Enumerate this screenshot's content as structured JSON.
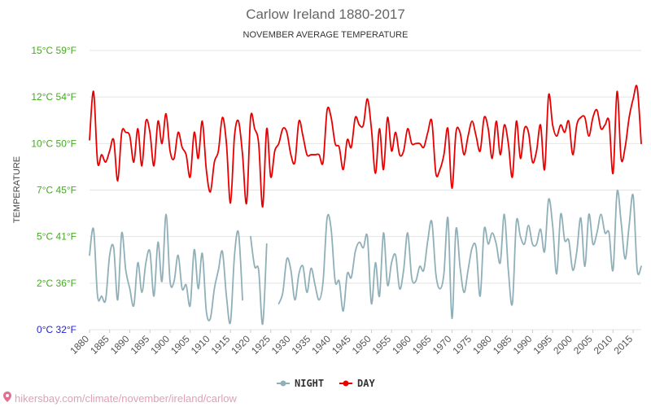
{
  "chart_data": {
    "type": "line",
    "title": "Carlow Ireland 1880-2017",
    "subtitle": "NOVEMBER AVERAGE TEMPERATURE",
    "ylabel": "TEMPERATURE",
    "ylim": [
      0,
      15
    ],
    "xlim": [
      1880,
      2017
    ],
    "yticks": [
      {
        "value": 0,
        "label": "0°C 32°F",
        "color": "#2222cc"
      },
      {
        "value": 2.5,
        "label": "2°C 36°F",
        "color": "#44aa22"
      },
      {
        "value": 5,
        "label": "5°C 41°F",
        "color": "#44aa22"
      },
      {
        "value": 7.5,
        "label": "7°C 45°F",
        "color": "#44aa22"
      },
      {
        "value": 10,
        "label": "10°C 50°F",
        "color": "#44aa22"
      },
      {
        "value": 12.5,
        "label": "12°C 54°F",
        "color": "#44aa22"
      },
      {
        "value": 15,
        "label": "15°C 59°F",
        "color": "#44aa22"
      }
    ],
    "xticks": [
      1880,
      1885,
      1890,
      1895,
      1900,
      1905,
      1910,
      1915,
      1920,
      1925,
      1930,
      1935,
      1940,
      1945,
      1950,
      1955,
      1960,
      1965,
      1970,
      1975,
      1980,
      1985,
      1990,
      1995,
      2000,
      2005,
      2010,
      2015
    ],
    "grid": true,
    "legend": "bottom-center",
    "series": [
      {
        "name": "NIGHT",
        "color": "#8fb0b8",
        "values": [
          [
            1880,
            4.0
          ],
          [
            1881,
            5.4
          ],
          [
            1882,
            1.8
          ],
          [
            1883,
            1.8
          ],
          [
            1884,
            1.6
          ],
          [
            1885,
            4.0
          ],
          [
            1886,
            4.4
          ],
          [
            1887,
            1.6
          ],
          [
            1888,
            5.2
          ],
          [
            1889,
            3.2
          ],
          [
            1890,
            2.2
          ],
          [
            1891,
            1.3
          ],
          [
            1892,
            3.6
          ],
          [
            1893,
            2.0
          ],
          [
            1894,
            3.6
          ],
          [
            1895,
            4.2
          ],
          [
            1896,
            1.8
          ],
          [
            1897,
            4.7
          ],
          [
            1898,
            2.6
          ],
          [
            1899,
            6.2
          ],
          [
            1900,
            2.6
          ],
          [
            1901,
            2.6
          ],
          [
            1902,
            4.0
          ],
          [
            1903,
            2.2
          ],
          [
            1904,
            2.4
          ],
          [
            1905,
            1.3
          ],
          [
            1906,
            4.3
          ],
          [
            1907,
            2.2
          ],
          [
            1908,
            4.1
          ],
          [
            1909,
            1.0
          ],
          [
            1910,
            0.6
          ],
          [
            1911,
            2.2
          ],
          [
            1912,
            3.2
          ],
          [
            1913,
            4.2
          ],
          [
            1914,
            1.8
          ],
          [
            1915,
            0.4
          ],
          [
            1916,
            4.0
          ],
          [
            1917,
            5.2
          ],
          [
            1918,
            1.6
          ],
          [
            1919,
            null
          ],
          [
            1920,
            5.0
          ],
          [
            1921,
            3.4
          ],
          [
            1922,
            3.2
          ],
          [
            1923,
            0.3
          ],
          [
            1924,
            4.6
          ],
          [
            1925,
            null
          ],
          [
            1926,
            null
          ],
          [
            1927,
            1.4
          ],
          [
            1928,
            2.0
          ],
          [
            1929,
            3.8
          ],
          [
            1930,
            3.2
          ],
          [
            1931,
            1.6
          ],
          [
            1932,
            3.0
          ],
          [
            1933,
            3.4
          ],
          [
            1934,
            2.0
          ],
          [
            1935,
            3.3
          ],
          [
            1936,
            2.4
          ],
          [
            1937,
            1.6
          ],
          [
            1938,
            2.6
          ],
          [
            1939,
            6.0
          ],
          [
            1940,
            5.4
          ],
          [
            1941,
            2.6
          ],
          [
            1942,
            2.6
          ],
          [
            1943,
            1.0
          ],
          [
            1944,
            3.0
          ],
          [
            1945,
            2.8
          ],
          [
            1946,
            4.2
          ],
          [
            1947,
            4.7
          ],
          [
            1948,
            4.4
          ],
          [
            1949,
            5.0
          ],
          [
            1950,
            1.4
          ],
          [
            1951,
            3.6
          ],
          [
            1952,
            1.8
          ],
          [
            1953,
            5.2
          ],
          [
            1954,
            2.4
          ],
          [
            1955,
            3.6
          ],
          [
            1956,
            4.0
          ],
          [
            1957,
            2.2
          ],
          [
            1958,
            3.2
          ],
          [
            1959,
            5.2
          ],
          [
            1960,
            2.8
          ],
          [
            1961,
            2.6
          ],
          [
            1962,
            3.4
          ],
          [
            1963,
            3.2
          ],
          [
            1964,
            4.8
          ],
          [
            1965,
            5.8
          ],
          [
            1966,
            3.0
          ],
          [
            1967,
            2.2
          ],
          [
            1968,
            3.0
          ],
          [
            1969,
            6.0
          ],
          [
            1970,
            0.6
          ],
          [
            1971,
            5.4
          ],
          [
            1972,
            3.4
          ],
          [
            1973,
            2.0
          ],
          [
            1974,
            3.2
          ],
          [
            1975,
            4.4
          ],
          [
            1976,
            4.4
          ],
          [
            1977,
            1.8
          ],
          [
            1978,
            5.4
          ],
          [
            1979,
            4.6
          ],
          [
            1980,
            5.2
          ],
          [
            1981,
            4.6
          ],
          [
            1982,
            3.6
          ],
          [
            1983,
            6.2
          ],
          [
            1984,
            3.2
          ],
          [
            1985,
            1.4
          ],
          [
            1986,
            5.8
          ],
          [
            1987,
            5.0
          ],
          [
            1988,
            4.6
          ],
          [
            1989,
            5.6
          ],
          [
            1990,
            4.6
          ],
          [
            1991,
            4.6
          ],
          [
            1992,
            5.4
          ],
          [
            1993,
            4.2
          ],
          [
            1994,
            7.0
          ],
          [
            1995,
            5.6
          ],
          [
            1996,
            3.0
          ],
          [
            1997,
            6.2
          ],
          [
            1998,
            4.8
          ],
          [
            1999,
            4.8
          ],
          [
            2000,
            3.2
          ],
          [
            2001,
            4.2
          ],
          [
            2002,
            6.0
          ],
          [
            2003,
            3.4
          ],
          [
            2004,
            6.2
          ],
          [
            2005,
            4.6
          ],
          [
            2006,
            5.2
          ],
          [
            2007,
            6.2
          ],
          [
            2008,
            5.2
          ],
          [
            2009,
            5.2
          ],
          [
            2010,
            3.2
          ],
          [
            2011,
            7.4
          ],
          [
            2012,
            5.8
          ],
          [
            2013,
            3.8
          ],
          [
            2014,
            5.6
          ],
          [
            2015,
            7.2
          ],
          [
            2016,
            3.2
          ],
          [
            2017,
            3.4
          ]
        ]
      },
      {
        "name": "DAY",
        "color": "#e80000",
        "values": [
          [
            1880,
            10.2
          ],
          [
            1881,
            12.8
          ],
          [
            1882,
            9.0
          ],
          [
            1883,
            9.4
          ],
          [
            1884,
            9.0
          ],
          [
            1885,
            9.6
          ],
          [
            1886,
            10.2
          ],
          [
            1887,
            8.0
          ],
          [
            1888,
            10.6
          ],
          [
            1889,
            10.6
          ],
          [
            1890,
            10.4
          ],
          [
            1891,
            9.0
          ],
          [
            1892,
            10.8
          ],
          [
            1893,
            8.8
          ],
          [
            1894,
            11.2
          ],
          [
            1895,
            10.6
          ],
          [
            1896,
            8.8
          ],
          [
            1897,
            11.2
          ],
          [
            1898,
            10.0
          ],
          [
            1899,
            11.6
          ],
          [
            1900,
            9.6
          ],
          [
            1901,
            9.2
          ],
          [
            1902,
            10.6
          ],
          [
            1903,
            9.8
          ],
          [
            1904,
            9.4
          ],
          [
            1905,
            8.2
          ],
          [
            1906,
            10.6
          ],
          [
            1907,
            9.2
          ],
          [
            1908,
            11.2
          ],
          [
            1909,
            8.6
          ],
          [
            1910,
            7.4
          ],
          [
            1911,
            9.0
          ],
          [
            1912,
            9.6
          ],
          [
            1913,
            11.4
          ],
          [
            1914,
            10.0
          ],
          [
            1915,
            6.8
          ],
          [
            1916,
            10.4
          ],
          [
            1917,
            11.2
          ],
          [
            1918,
            9.4
          ],
          [
            1919,
            6.8
          ],
          [
            1920,
            11.4
          ],
          [
            1921,
            10.8
          ],
          [
            1922,
            10.0
          ],
          [
            1923,
            6.6
          ],
          [
            1924,
            10.8
          ],
          [
            1925,
            8.2
          ],
          [
            1926,
            9.6
          ],
          [
            1927,
            10.0
          ],
          [
            1928,
            10.8
          ],
          [
            1929,
            10.6
          ],
          [
            1930,
            9.4
          ],
          [
            1931,
            9.0
          ],
          [
            1932,
            11.2
          ],
          [
            1933,
            10.4
          ],
          [
            1934,
            9.4
          ],
          [
            1935,
            9.4
          ],
          [
            1936,
            9.4
          ],
          [
            1937,
            9.4
          ],
          [
            1938,
            9.0
          ],
          [
            1939,
            11.8
          ],
          [
            1940,
            11.4
          ],
          [
            1941,
            10.0
          ],
          [
            1942,
            9.8
          ],
          [
            1943,
            8.6
          ],
          [
            1944,
            10.2
          ],
          [
            1945,
            9.8
          ],
          [
            1946,
            11.4
          ],
          [
            1947,
            11.0
          ],
          [
            1948,
            11.0
          ],
          [
            1949,
            12.4
          ],
          [
            1950,
            10.8
          ],
          [
            1951,
            8.4
          ],
          [
            1952,
            10.8
          ],
          [
            1953,
            8.6
          ],
          [
            1954,
            11.4
          ],
          [
            1955,
            9.6
          ],
          [
            1956,
            10.6
          ],
          [
            1957,
            9.4
          ],
          [
            1958,
            9.6
          ],
          [
            1959,
            10.8
          ],
          [
            1960,
            10.0
          ],
          [
            1961,
            10.0
          ],
          [
            1962,
            10.0
          ],
          [
            1963,
            9.8
          ],
          [
            1964,
            10.6
          ],
          [
            1965,
            11.2
          ],
          [
            1966,
            8.4
          ],
          [
            1967,
            8.6
          ],
          [
            1968,
            9.4
          ],
          [
            1969,
            10.8
          ],
          [
            1970,
            7.6
          ],
          [
            1971,
            10.6
          ],
          [
            1972,
            10.6
          ],
          [
            1973,
            9.4
          ],
          [
            1974,
            10.4
          ],
          [
            1975,
            11.2
          ],
          [
            1976,
            10.4
          ],
          [
            1977,
            9.6
          ],
          [
            1978,
            11.4
          ],
          [
            1979,
            10.8
          ],
          [
            1980,
            9.2
          ],
          [
            1981,
            11.2
          ],
          [
            1982,
            9.4
          ],
          [
            1983,
            11.0
          ],
          [
            1984,
            10.0
          ],
          [
            1985,
            8.2
          ],
          [
            1986,
            11.2
          ],
          [
            1987,
            9.2
          ],
          [
            1988,
            10.8
          ],
          [
            1989,
            10.6
          ],
          [
            1990,
            9.0
          ],
          [
            1991,
            9.6
          ],
          [
            1992,
            11.0
          ],
          [
            1993,
            8.6
          ],
          [
            1994,
            12.6
          ],
          [
            1995,
            11.0
          ],
          [
            1996,
            10.4
          ],
          [
            1997,
            11.0
          ],
          [
            1998,
            10.6
          ],
          [
            1999,
            11.2
          ],
          [
            2000,
            9.4
          ],
          [
            2001,
            11.0
          ],
          [
            2002,
            11.4
          ],
          [
            2003,
            11.4
          ],
          [
            2004,
            10.4
          ],
          [
            2005,
            11.4
          ],
          [
            2006,
            11.8
          ],
          [
            2007,
            10.8
          ],
          [
            2008,
            11.0
          ],
          [
            2009,
            11.2
          ],
          [
            2010,
            8.4
          ],
          [
            2011,
            12.8
          ],
          [
            2012,
            9.2
          ],
          [
            2013,
            9.8
          ],
          [
            2014,
            11.4
          ],
          [
            2015,
            12.4
          ],
          [
            2016,
            13.0
          ],
          [
            2017,
            10.0
          ]
        ]
      }
    ]
  },
  "footer": {
    "site_label": "hikersbay.com/climate/november/ireland/carlow",
    "pin_icon": "location-pin-icon"
  }
}
